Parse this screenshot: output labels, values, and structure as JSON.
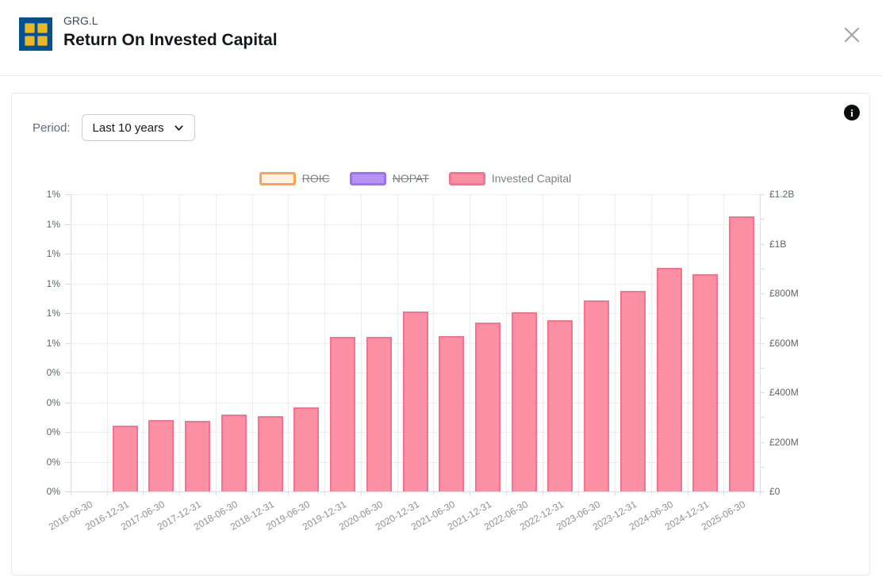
{
  "header": {
    "ticker": "GRG.L",
    "title": "Return On Invested Capital",
    "close_icon": "close-x",
    "logo_icon": "four-squares-grid"
  },
  "panel": {
    "period_label": "Period:",
    "period_value": "Last 10 years",
    "info_icon": "i"
  },
  "chart_data": {
    "type": "bar",
    "title": "Return On Invested Capital",
    "legend_position": "top",
    "grid": true,
    "legend": [
      {
        "label": "ROIC",
        "fill": "#FFF0E0",
        "border": "#FFA14D",
        "disabled": true
      },
      {
        "label": "NOPAT",
        "fill": "#B593F7",
        "border": "#9D71F0",
        "disabled": true
      },
      {
        "label": "Invested Capital",
        "fill": "#FB8FA4",
        "border": "#F9718D",
        "disabled": false
      }
    ],
    "categories": [
      "2016-06-30",
      "2016-12-31",
      "2017-06-30",
      "2017-12-31",
      "2018-06-30",
      "2018-12-31",
      "2019-06-30",
      "2019-12-31",
      "2020-06-30",
      "2020-12-31",
      "2021-06-30",
      "2021-12-31",
      "2022-06-30",
      "2022-12-31",
      "2023-06-30",
      "2023-12-31",
      "2024-06-30",
      "2024-12-31",
      "2025-06-30"
    ],
    "series": [
      {
        "name": "Invested Capital",
        "unit": "GBP millions (estimated from axis)",
        "fill": "#FB8FA4",
        "border": "#F9718D",
        "values": [
          null,
          265,
          287,
          285,
          309,
          303,
          338,
          625,
          625,
          727,
          628,
          683,
          724,
          692,
          772,
          810,
          903,
          877,
          1110
        ]
      }
    ],
    "left_axis": {
      "tick_labels": [
        "1%",
        "1%",
        "1%",
        "1%",
        "1%",
        "1%",
        "0%",
        "0%",
        "0%",
        "0%",
        "0%"
      ]
    },
    "right_axis": {
      "tick_labels": [
        "£1.2B",
        "£1B",
        "£800M",
        "£600M",
        "£400M",
        "£200M",
        "£0"
      ],
      "min": 0,
      "max_millions": 1200,
      "minor_ticks": 13
    }
  }
}
